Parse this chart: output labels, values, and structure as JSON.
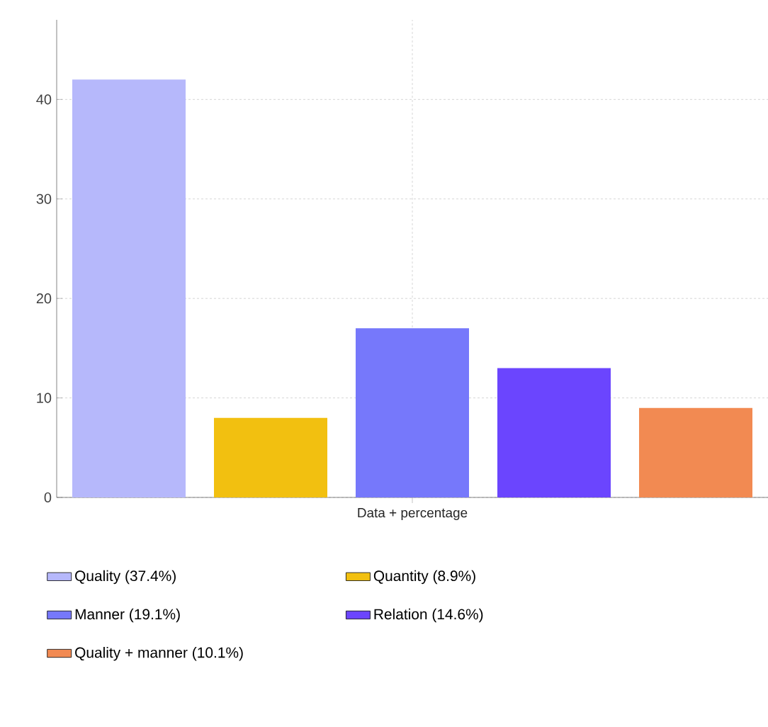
{
  "chart_data": {
    "type": "bar",
    "categories": [
      "Data + percentage"
    ],
    "series": [
      {
        "name": "Quality (37.4%)",
        "color": "#b6b8fb",
        "values": [
          42
        ]
      },
      {
        "name": "Quantity (8.9%)",
        "color": "#f2c010",
        "values": [
          8
        ]
      },
      {
        "name": "Manner (19.1%)",
        "color": "#7678fb",
        "values": [
          17
        ]
      },
      {
        "name": "Relation (14.6%)",
        "color": "#6b45fe",
        "values": [
          13
        ]
      },
      {
        "name": "Quality + manner (10.1%)",
        "color": "#f28a52",
        "values": [
          9
        ]
      }
    ],
    "ylim": [
      0,
      48
    ],
    "yticks": [
      0,
      10,
      20,
      30,
      40
    ],
    "grid": true,
    "legend": "bottom"
  }
}
